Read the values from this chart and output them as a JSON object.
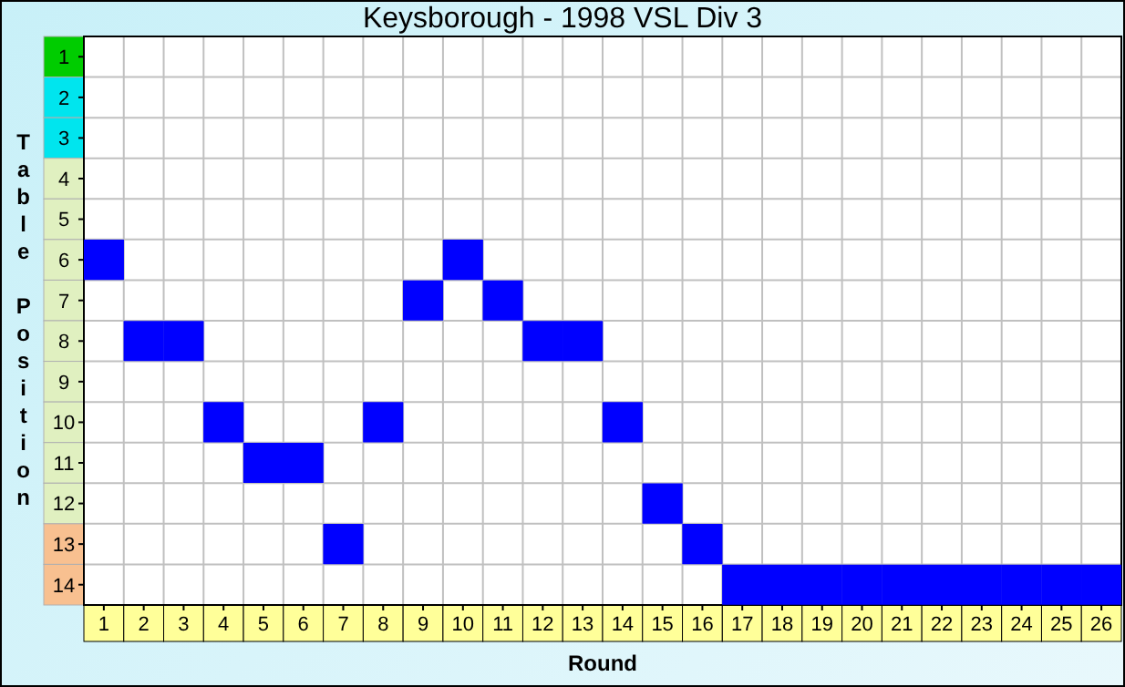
{
  "chart_data": {
    "type": "scatter",
    "title": "Keysborough - 1998 VSL Div 3",
    "xlabel": "Round",
    "ylabel": "Table Position",
    "x": [
      1,
      2,
      3,
      4,
      5,
      6,
      7,
      8,
      9,
      10,
      11,
      12,
      13,
      14,
      15,
      16,
      17,
      18,
      19,
      20,
      21,
      22,
      23,
      24,
      25,
      26
    ],
    "series": [
      {
        "color": "#0000ff",
        "values": [
          6,
          8,
          8,
          10,
          11,
          11,
          13,
          10,
          7,
          6,
          7,
          8,
          8,
          10,
          12,
          13,
          14,
          14,
          14,
          14,
          14,
          14,
          14,
          14,
          14,
          14
        ]
      }
    ],
    "marker": "square",
    "xlim": [
      0.5,
      26.5
    ],
    "xticks": [
      1,
      2,
      3,
      4,
      5,
      6,
      7,
      8,
      9,
      10,
      11,
      12,
      13,
      14,
      15,
      16,
      17,
      18,
      19,
      20,
      21,
      22,
      23,
      24,
      25,
      26,
      {
        "value": 0.5,
        "label": null
      },
      {
        "value": 1.5,
        "label": null
      },
      {
        "value": 2.5,
        "label": null
      },
      {
        "value": 3.5,
        "label": null
      },
      {
        "value": 4.5,
        "label": null
      },
      {
        "value": 5.5,
        "label": null
      },
      {
        "value": 6.5,
        "label": null
      },
      {
        "value": 7.5,
        "label": null
      },
      {
        "value": 8.5,
        "label": null
      },
      {
        "value": 9.5,
        "label": null
      },
      {
        "value": 10.5,
        "label": null
      },
      {
        "value": 11.5,
        "label": null
      },
      {
        "value": 12.5,
        "label": null
      },
      {
        "value": 13.5,
        "label": null
      },
      {
        "value": 14.5,
        "label": null
      },
      {
        "value": 15.5,
        "label": null
      },
      {
        "value": 16.5,
        "label": null
      },
      {
        "value": 17.5,
        "label": null
      },
      {
        "value": 18.5,
        "label": null
      },
      {
        "value": 19.5,
        "label": null
      },
      {
        "value": 20.5,
        "label": null
      },
      {
        "value": 21.5,
        "label": null
      },
      {
        "value": 22.5,
        "label": null
      },
      {
        "value": 23.5,
        "label": null
      },
      {
        "value": 24.5,
        "label": null
      },
      {
        "value": 25.5,
        "label": null
      },
      {
        "value": 26.5,
        "label": null
      }
    ],
    "ylim": [
      14.5,
      0.5
    ],
    "yticks": [
      1,
      2,
      3,
      4,
      5,
      6,
      7,
      8,
      9,
      10,
      11,
      12,
      13,
      14,
      {
        "value": 0.5,
        "label": null
      },
      {
        "value": 1.5,
        "label": null
      },
      {
        "value": 2.5,
        "label": null
      },
      {
        "value": 3.5,
        "label": null
      },
      {
        "value": 4.5,
        "label": null
      },
      {
        "value": 5.5,
        "label": null
      },
      {
        "value": 6.5,
        "label": null
      },
      {
        "value": 7.5,
        "label": null
      },
      {
        "value": 8.5,
        "label": null
      },
      {
        "value": 9.5,
        "label": null
      },
      {
        "value": 10.5,
        "label": null
      },
      {
        "value": 11.5,
        "label": null
      },
      {
        "value": 12.5,
        "label": null
      },
      {
        "value": 13.5,
        "label": null
      },
      {
        "value": 14.5,
        "label": null
      }
    ],
    "grid": true
  }
}
